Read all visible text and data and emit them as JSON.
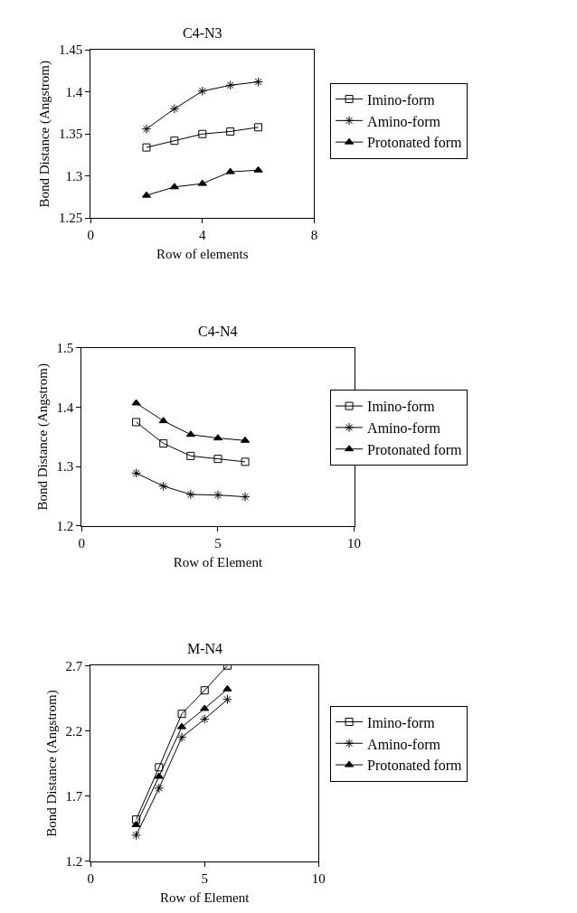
{
  "chart_data": [
    {
      "type": "line",
      "title": "C4-N3",
      "xlabel": "Row of elements",
      "ylabel": "Bond Distance (Angstrom)",
      "x": [
        2,
        3,
        4,
        5,
        6
      ],
      "xlim": [
        0,
        8
      ],
      "xticks": [
        0,
        4,
        8
      ],
      "ylim": [
        1.25,
        1.45
      ],
      "yticks": [
        1.25,
        1.3,
        1.35,
        1.4,
        1.45
      ],
      "legend": "right",
      "series": [
        {
          "name": "Imino-form",
          "color": "#000000",
          "marker": "square",
          "values": [
            1.334,
            1.342,
            1.35,
            1.353,
            1.358
          ]
        },
        {
          "name": "Amino-form",
          "color": "#000000",
          "marker": "cross",
          "values": [
            1.356,
            1.38,
            1.401,
            1.408,
            1.412
          ]
        },
        {
          "name": "Protonated form",
          "color": "#000000",
          "marker": "triangle",
          "values": [
            1.277,
            1.287,
            1.291,
            1.305,
            1.307
          ]
        }
      ]
    },
    {
      "type": "line",
      "title": "C4-N4",
      "xlabel": "Row of Element",
      "ylabel": "Bond Distance (Angstrom)",
      "x": [
        2,
        3,
        4,
        5,
        6
      ],
      "xlim": [
        0,
        10
      ],
      "xticks": [
        0,
        5,
        10
      ],
      "ylim": [
        1.2,
        1.5
      ],
      "yticks": [
        1.2,
        1.3,
        1.4,
        1.5
      ],
      "legend": "right",
      "series": [
        {
          "name": "Imino-form",
          "color": "#000000",
          "marker": "square",
          "values": [
            1.375,
            1.339,
            1.318,
            1.313,
            1.308
          ]
        },
        {
          "name": "Amino-form",
          "color": "#000000",
          "marker": "cross",
          "values": [
            1.289,
            1.267,
            1.253,
            1.252,
            1.249
          ]
        },
        {
          "name": "Protonated form",
          "color": "#000000",
          "marker": "triangle",
          "values": [
            1.407,
            1.377,
            1.354,
            1.348,
            1.344
          ]
        }
      ]
    },
    {
      "type": "line",
      "title": "M-N4",
      "xlabel": "Row of Element",
      "ylabel": "Bond Distance (Angstrom)",
      "x": [
        2,
        3,
        4,
        5,
        6
      ],
      "xlim": [
        0,
        10
      ],
      "xticks": [
        0,
        5,
        10
      ],
      "ylim": [
        1.2,
        2.7
      ],
      "yticks": [
        1.2,
        1.7,
        2.2,
        2.7
      ],
      "legend": "right",
      "series": [
        {
          "name": "Imino-form",
          "color": "#000000",
          "marker": "square",
          "values": [
            1.52,
            1.92,
            2.33,
            2.51,
            2.7
          ]
        },
        {
          "name": "Amino-form",
          "color": "#000000",
          "marker": "cross",
          "values": [
            1.4,
            1.76,
            2.15,
            2.29,
            2.44
          ]
        },
        {
          "name": "Protonated form",
          "color": "#000000",
          "marker": "triangle",
          "values": [
            1.48,
            1.85,
            2.23,
            2.37,
            2.52
          ]
        }
      ]
    }
  ]
}
